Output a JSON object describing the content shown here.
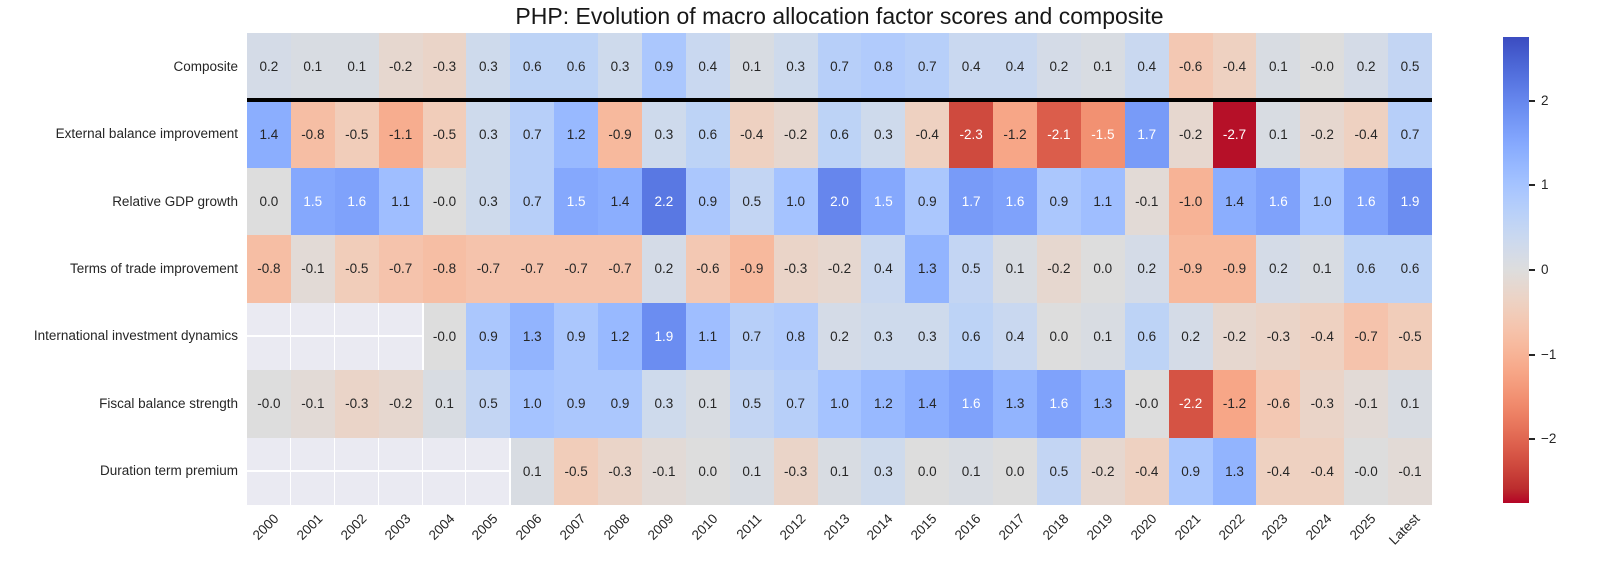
{
  "title": "PHP: Evolution of macro allocation factor scores and composite",
  "colors": {
    "background": "#ffffff",
    "empty_cell": "#eaeaf2",
    "cell_text_dark": "#262626",
    "cell_text_light": "#ffffff",
    "separator_line": "#000000",
    "positive_extreme": "#3b4cc0",
    "zero_midpoint": "#dddddd",
    "negative_extreme": "#b40426"
  },
  "chart_data": {
    "type": "heatmap",
    "title": "PHP: Evolution of macro allocation factor scores and composite",
    "x_categories": [
      "2000",
      "2001",
      "2002",
      "2003",
      "2004",
      "2005",
      "2006",
      "2007",
      "2008",
      "2009",
      "2010",
      "2011",
      "2012",
      "2013",
      "2014",
      "2015",
      "2016",
      "2017",
      "2018",
      "2019",
      "2020",
      "2021",
      "2022",
      "2023",
      "2024",
      "2025",
      "Latest"
    ],
    "rows": [
      {
        "label": "Composite",
        "values": [
          "0.2",
          "0.1",
          "0.1",
          "-0.2",
          "-0.3",
          "0.3",
          "0.6",
          "0.6",
          "0.3",
          "0.9",
          "0.4",
          "0.1",
          "0.3",
          "0.7",
          "0.8",
          "0.7",
          "0.4",
          "0.4",
          "0.2",
          "0.1",
          "0.4",
          "-0.6",
          "-0.4",
          "0.1",
          "-0.0",
          "0.2",
          "0.5"
        ]
      },
      {
        "label": "External balance improvement",
        "values": [
          "1.4",
          "-0.8",
          "-0.5",
          "-1.1",
          "-0.5",
          "0.3",
          "0.7",
          "1.2",
          "-0.9",
          "0.3",
          "0.6",
          "-0.4",
          "-0.2",
          "0.6",
          "0.3",
          "-0.4",
          "-2.3",
          "-1.2",
          "-2.1",
          "-1.5",
          "1.7",
          "-0.2",
          "-2.7",
          "0.1",
          "-0.2",
          "-0.4",
          "0.7"
        ]
      },
      {
        "label": "Relative GDP growth",
        "values": [
          "0.0",
          "1.5",
          "1.6",
          "1.1",
          "-0.0",
          "0.3",
          "0.7",
          "1.5",
          "1.4",
          "2.2",
          "0.9",
          "0.5",
          "1.0",
          "2.0",
          "1.5",
          "0.9",
          "1.7",
          "1.6",
          "0.9",
          "1.1",
          "-0.1",
          "-1.0",
          "1.4",
          "1.6",
          "1.0",
          "1.6",
          "1.9"
        ]
      },
      {
        "label": "Terms of trade improvement",
        "values": [
          "-0.8",
          "-0.1",
          "-0.5",
          "-0.7",
          "-0.8",
          "-0.7",
          "-0.7",
          "-0.7",
          "-0.7",
          "0.2",
          "-0.6",
          "-0.9",
          "-0.3",
          "-0.2",
          "0.4",
          "1.3",
          "0.5",
          "0.1",
          "-0.2",
          "0.0",
          "0.2",
          "-0.9",
          "-0.9",
          "0.2",
          "0.1",
          "0.6",
          "0.6"
        ]
      },
      {
        "label": "International investment dynamics",
        "values": [
          "",
          "",
          "",
          "",
          "-0.0",
          "0.9",
          "1.3",
          "0.9",
          "1.2",
          "1.9",
          "1.1",
          "0.7",
          "0.8",
          "0.2",
          "0.3",
          "0.3",
          "0.6",
          "0.4",
          "0.0",
          "0.1",
          "0.6",
          "0.2",
          "-0.2",
          "-0.3",
          "-0.4",
          "-0.7",
          "-0.5"
        ]
      },
      {
        "label": "Fiscal balance strength",
        "values": [
          "-0.0",
          "-0.1",
          "-0.3",
          "-0.2",
          "0.1",
          "0.5",
          "1.0",
          "0.9",
          "0.9",
          "0.3",
          "0.1",
          "0.5",
          "0.7",
          "1.0",
          "1.2",
          "1.4",
          "1.6",
          "1.3",
          "1.6",
          "1.3",
          "-0.0",
          "-2.2",
          "-1.2",
          "-0.6",
          "-0.3",
          "-0.1",
          "0.1"
        ]
      },
      {
        "label": "Duration term premium",
        "values": [
          "",
          "",
          "",
          "",
          "",
          "",
          "0.1",
          "-0.5",
          "-0.3",
          "-0.1",
          "0.0",
          "0.1",
          "-0.3",
          "0.1",
          "0.3",
          "0.0",
          "0.1",
          "0.0",
          "0.5",
          "-0.2",
          "-0.4",
          "0.9",
          "1.3",
          "-0.4",
          "-0.4",
          "-0.0",
          "-0.1"
        ]
      }
    ],
    "separator_below_row": "Composite",
    "color_scale": {
      "palette": "coolwarm reversed (negative=red, positive=blue)",
      "vmin": -2.75,
      "vmax": 2.75
    },
    "legend_position": "right colorbar",
    "grid": false,
    "colorbar_ticks": [
      {
        "value": 2,
        "label": "2"
      },
      {
        "value": 1,
        "label": "1"
      },
      {
        "value": 0,
        "label": "0"
      },
      {
        "value": -1,
        "label": "−1"
      },
      {
        "value": -2,
        "label": "−2"
      }
    ]
  }
}
